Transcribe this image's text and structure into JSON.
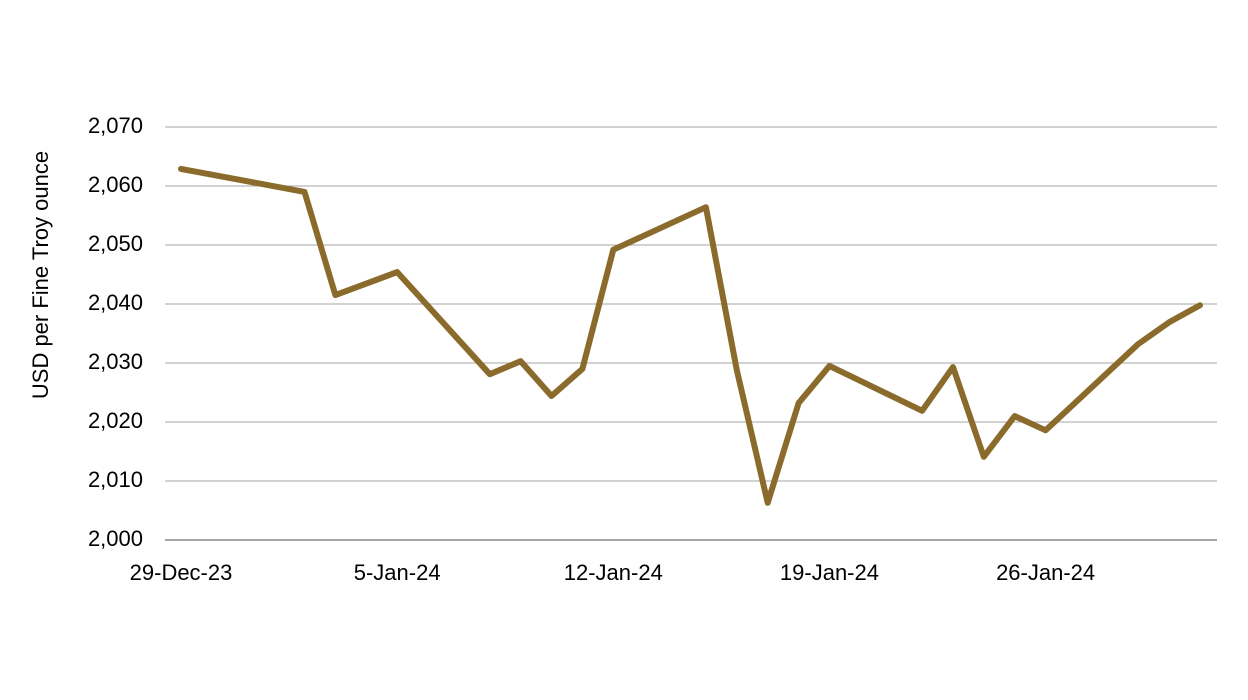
{
  "chart_data": {
    "type": "line",
    "y_label": "USD per Fine Troy ounce",
    "x": [
      "2023-12-29",
      "2024-01-02",
      "2024-01-03",
      "2024-01-05",
      "2024-01-08",
      "2024-01-09",
      "2024-01-10",
      "2024-01-11",
      "2024-01-12",
      "2024-01-15",
      "2024-01-16",
      "2024-01-17",
      "2024-01-18",
      "2024-01-19",
      "2024-01-22",
      "2024-01-23",
      "2024-01-24",
      "2024-01-25",
      "2024-01-26",
      "2024-01-29",
      "2024-01-30",
      "2024-01-31"
    ],
    "series": [
      {
        "color": "#8a6b2c",
        "values": [
          2062.9,
          2059.0,
          2041.5,
          2045.4,
          2028.1,
          2030.3,
          2024.4,
          2029.0,
          2049.2,
          2056.4,
          2028.8,
          2006.3,
          2023.2,
          2029.5,
          2021.9,
          2029.3,
          2014.1,
          2021.0,
          2018.6,
          2033.2,
          2036.9,
          2039.8
        ]
      }
    ],
    "xlim": [
      "2023-12-29",
      "2024-01-31"
    ],
    "xticks": [
      {
        "value": "2023-12-29",
        "label": "29-Dec-23"
      },
      {
        "value": "2024-01-05",
        "label": "5-Jan-24"
      },
      {
        "value": "2024-01-12",
        "label": "12-Jan-24"
      },
      {
        "value": "2024-01-19",
        "label": "19-Jan-24"
      },
      {
        "value": "2024-01-26",
        "label": "26-Jan-24"
      }
    ],
    "ylim": [
      2000,
      2070
    ],
    "yticks": [
      {
        "value": 2000,
        "label": "2,000"
      },
      {
        "value": 2010,
        "label": "2,010"
      },
      {
        "value": 2020,
        "label": "2,020"
      },
      {
        "value": 2030,
        "label": "2,030"
      },
      {
        "value": 2040,
        "label": "2,040"
      },
      {
        "value": 2050,
        "label": "2,050"
      },
      {
        "value": 2060,
        "label": "2,060"
      },
      {
        "value": 2070,
        "label": "2,070"
      }
    ],
    "grid": true
  }
}
